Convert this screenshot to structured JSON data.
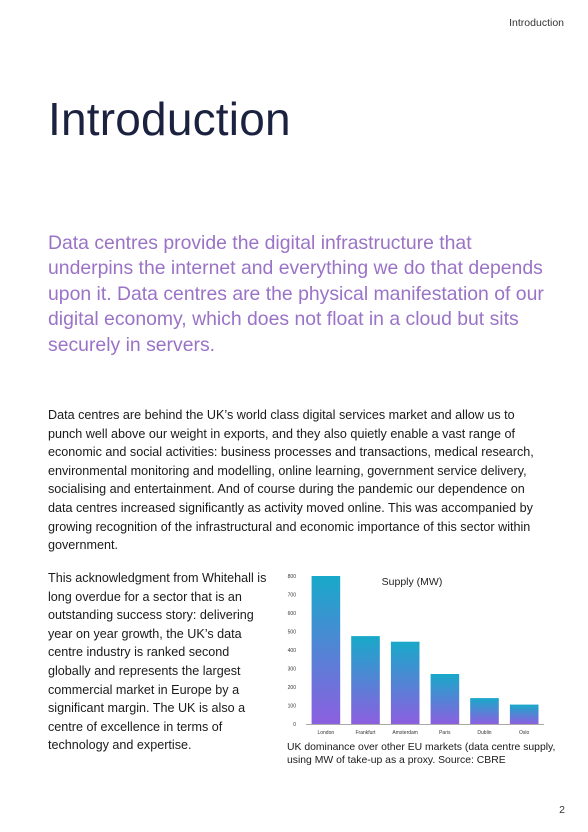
{
  "header": {
    "running_title": "Introduction"
  },
  "title": "Introduction",
  "lead": "Data centres provide the digital infrastructure that underpins the internet and everything we do that depends upon it. Data centres are the physical manifestation of our digital economy, which does not float in a cloud but sits securely in servers.",
  "body_full": "Data centres are behind the UK’s world class digital services market and allow us to punch well above our weight in exports, and they also quietly enable a vast range of economic and social activities: business processes and transactions, medical research, environmental monitoring and modelling, online learning, government service delivery, socialising and entertainment. And of course during the pandemic our dependence on data centres increased significantly as activity moved online. This was accompanied by growing recognition of the infrastructural and economic importance of this sector within government.",
  "body_column": "This acknowledgment from Whitehall is long overdue for a sector that is an outstanding success story: delivering year on year growth, the UK’s data centre industry is ranked second globally and represents the largest commercial market in Europe by a significant margin. The UK is also a centre of excellence in terms of technology and expertise.",
  "chart_data": {
    "type": "bar",
    "title": "Supply (MW)",
    "categories": [
      "London",
      "Frankfurt",
      "Amsterdam",
      "Paris",
      "Dublin",
      "Oslo"
    ],
    "values": [
      800,
      475,
      445,
      270,
      140,
      105
    ],
    "ylim": [
      0,
      800
    ],
    "yticks": [
      0,
      100,
      200,
      300,
      400,
      500,
      600,
      700,
      800
    ],
    "grid": false,
    "colors": {
      "gradient_top": "#18a9c9",
      "gradient_bottom": "#8c5fe0",
      "axis": "#555555"
    }
  },
  "caption": "UK dominance over other EU markets (data centre supply, using MW of take-up as a proxy. Source: CBRE",
  "page_number": "2"
}
